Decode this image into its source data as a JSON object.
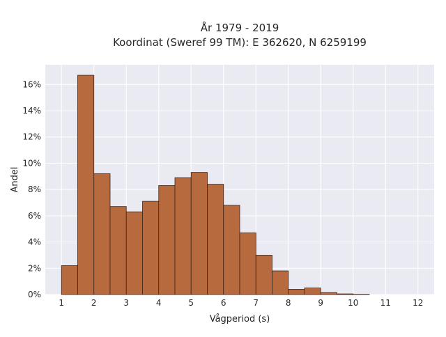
{
  "chart_data": {
    "type": "bar",
    "title_lines": [
      "År 1979 - 2019",
      "Koordinat (Sweref 99 TM): E 362620, N 6259199"
    ],
    "xlabel": "Vågperiod (s)",
    "ylabel": "Andel",
    "xlim": [
      0.5,
      12.5
    ],
    "ylim": [
      0,
      17.5
    ],
    "x_ticks": [
      1,
      2,
      3,
      4,
      5,
      6,
      7,
      8,
      9,
      10,
      11,
      12
    ],
    "x_tick_labels": [
      "1",
      "2",
      "3",
      "4",
      "5",
      "6",
      "7",
      "8",
      "9",
      "10",
      "11",
      "12"
    ],
    "y_ticks": [
      0,
      2,
      4,
      6,
      8,
      10,
      12,
      14,
      16
    ],
    "y_tick_labels": [
      "0%",
      "2%",
      "4%",
      "6%",
      "8%",
      "10%",
      "12%",
      "14%",
      "16%"
    ],
    "bin_width": 0.5,
    "bin_starts": [
      1.0,
      1.5,
      2.0,
      2.5,
      3.0,
      3.5,
      4.0,
      4.5,
      5.0,
      5.5,
      6.0,
      6.5,
      7.0,
      7.5,
      8.0,
      8.5,
      9.0,
      9.5,
      10.0
    ],
    "values": [
      2.2,
      16.7,
      9.2,
      6.7,
      6.3,
      7.1,
      8.3,
      8.9,
      9.3,
      8.4,
      6.8,
      4.7,
      3.0,
      1.8,
      0.4,
      0.5,
      0.15,
      0.05,
      0.02
    ],
    "grid": true,
    "colors": {
      "bar_fill": "#b86a3f",
      "bar_edge": "#3b2418",
      "plot_background": "#eaeaf2",
      "grid": "#ffffff"
    }
  }
}
